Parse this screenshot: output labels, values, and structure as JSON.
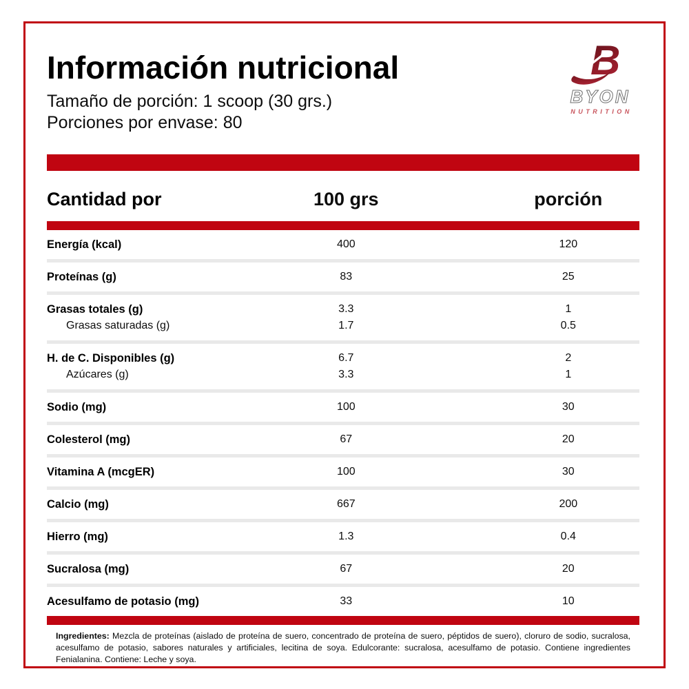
{
  "header": {
    "title": "Información nutricional",
    "serving_size": "Tamaño de porción: 1 scoop (30 grs.)",
    "servings_per_container": "Porciones por envase: 80"
  },
  "logo": {
    "mark": "B",
    "brand": "BYON",
    "subtext": "NUTRITION"
  },
  "table": {
    "header": {
      "col1": "Cantidad por",
      "col2": "100 grs",
      "col3": "porción"
    },
    "rows": [
      {
        "lines": [
          {
            "label": "Energía (kcal)",
            "per100": "400",
            "porcion": "120",
            "indent": false
          }
        ]
      },
      {
        "lines": [
          {
            "label": "Proteínas (g)",
            "per100": "83",
            "porcion": "25",
            "indent": false
          }
        ]
      },
      {
        "lines": [
          {
            "label": "Grasas totales (g)",
            "per100": "3.3",
            "porcion": "1",
            "indent": false
          },
          {
            "label": "Grasas saturadas (g)",
            "per100": "1.7",
            "porcion": "0.5",
            "indent": true
          }
        ]
      },
      {
        "lines": [
          {
            "label": "H. de C. Disponibles (g)",
            "per100": "6.7",
            "porcion": "2",
            "indent": false
          },
          {
            "label": "Azúcares (g)",
            "per100": "3.3",
            "porcion": "1",
            "indent": true
          }
        ]
      },
      {
        "lines": [
          {
            "label": "Sodio (mg)",
            "per100": "100",
            "porcion": "30",
            "indent": false
          }
        ]
      },
      {
        "lines": [
          {
            "label": "Colesterol (mg)",
            "per100": "67",
            "porcion": "20",
            "indent": false
          }
        ]
      },
      {
        "lines": [
          {
            "label": "Vitamina A (mcgER)",
            "per100": "100",
            "porcion": "30",
            "indent": false
          }
        ]
      },
      {
        "lines": [
          {
            "label": "Calcio (mg)",
            "per100": "667",
            "porcion": "200",
            "indent": false
          }
        ]
      },
      {
        "lines": [
          {
            "label": "Hierro (mg)",
            "per100": "1.3",
            "porcion": "0.4",
            "indent": false
          }
        ]
      },
      {
        "lines": [
          {
            "label": "Sucralosa (mg)",
            "per100": "67",
            "porcion": "20",
            "indent": false
          }
        ]
      },
      {
        "lines": [
          {
            "label": "Acesulfamo de potasio (mg)",
            "per100": "33",
            "porcion": "10",
            "indent": false
          }
        ]
      }
    ]
  },
  "ingredients": {
    "label": "Ingredientes:",
    "text": " Mezcla de proteínas (aislado de proteína de suero, concentrado de proteína de suero, péptidos de suero), cloruro de sodio, sucralosa, acesulfamo de potasio, sabores naturales y artificiales, lecitina de soya. Edulcorante: sucralosa, acesulfamo de potasio. Contiene ingredientes Fenialanina. Contiene: Leche y soya."
  },
  "colors": {
    "accent_red": "#C00511",
    "separator_gray": "#E9E9E9",
    "logo_maroon_dark": "#5F121B",
    "logo_maroon_light": "#A82233",
    "logo_nutrition_red": "#C8545C"
  }
}
